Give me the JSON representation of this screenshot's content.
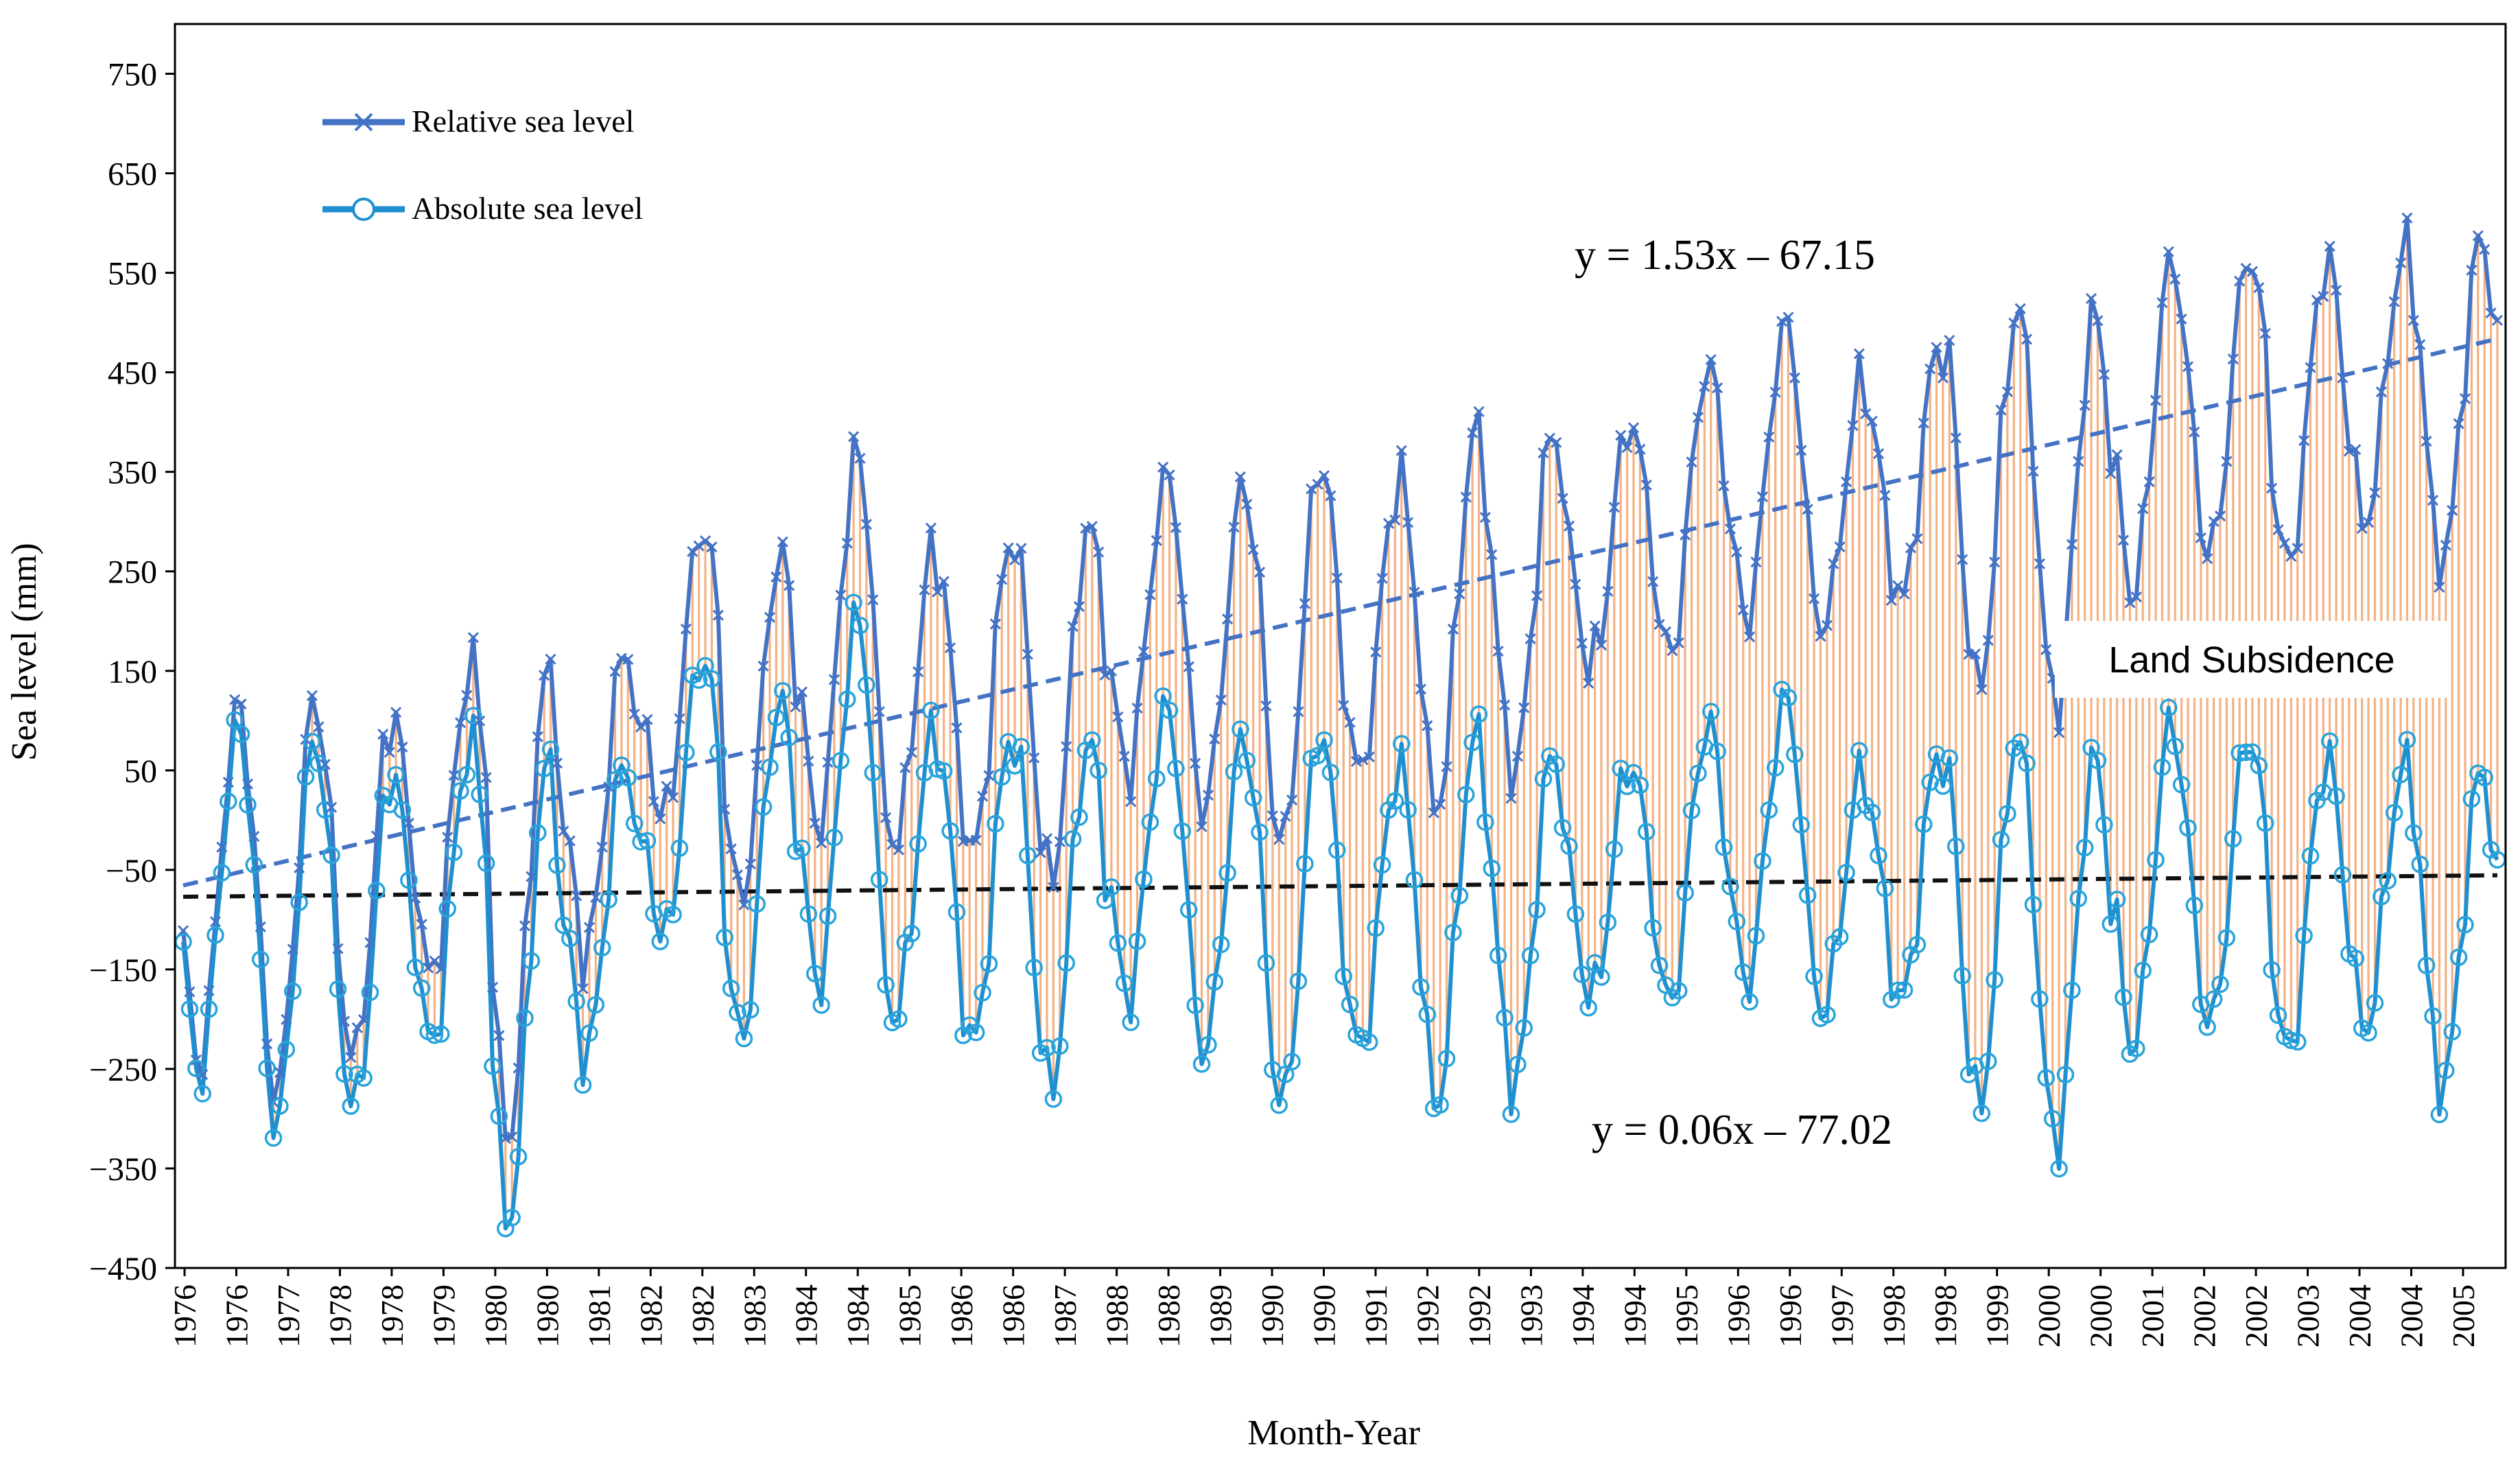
{
  "chart_data": {
    "type": "line",
    "xlabel": "Month-Year",
    "ylabel": "Sea level (mm)",
    "ylim": [
      -450,
      800
    ],
    "yticks": [
      -450,
      -350,
      -250,
      -150,
      -50,
      50,
      150,
      250,
      350,
      450,
      550,
      650,
      750
    ],
    "x_tick_labels": [
      "1976",
      "1976",
      "1977",
      "1978",
      "1978",
      "1979",
      "1980",
      "1980",
      "1981",
      "1982",
      "1982",
      "1983",
      "1984",
      "1984",
      "1985",
      "1986",
      "1986",
      "1987",
      "1988",
      "1988",
      "1989",
      "1990",
      "1990",
      "1991",
      "1992",
      "1992",
      "1993",
      "1994",
      "1994",
      "1995",
      "1996",
      "1996",
      "1997",
      "1998",
      "1998",
      "1999",
      "2000",
      "2000",
      "2001",
      "2002",
      "2002",
      "2003",
      "2004",
      "2004",
      "2005"
    ],
    "months": 360,
    "start": "1976-01",
    "legend": {
      "position": "top-left",
      "entries": [
        {
          "label": "Relative sea level",
          "marker": "x",
          "color": "#4472C4"
        },
        {
          "label": "Absolute sea level",
          "marker": "o",
          "color": "#1F8FD0"
        }
      ]
    },
    "fill": {
      "color": "#F4B183",
      "between": [
        "Relative sea level",
        "Absolute sea level"
      ]
    },
    "annotations": {
      "relative_trend": "y = 1.53x – 67.15",
      "absolute_trend": "y = 0.06x – 77.02",
      "land_subsidence": "Land Subsidence"
    },
    "series": [
      {
        "name": "Relative sea level",
        "trend": {
          "slope": 1.53,
          "intercept": -67.15
        },
        "color": "#4472C4"
      },
      {
        "name": "Absolute sea level",
        "trend": {
          "slope": 0.06,
          "intercept": -77.02
        },
        "color": "#1F8FD0"
      }
    ],
    "annual_absolute_peaks": [
      100,
      95,
      65,
      90,
      75,
      70,
      180,
      135,
      215,
      100,
      100,
      95,
      120,
      95,
      110,
      65,
      100,
      80,
      70,
      110,
      130,
      55,
      80,
      100,
      75,
      110,
      100,
      75,
      65,
      60
    ],
    "annual_absolute_troughs": [
      -270,
      -320,
      -305,
      -240,
      -420,
      -250,
      -135,
      -235,
      -180,
      -210,
      -240,
      -285,
      -190,
      -245,
      -305,
      -245,
      -300,
      -280,
      -190,
      -200,
      -175,
      -200,
      -195,
      -305,
      -340,
      -240,
      -220,
      -250,
      -220,
      -280
    ]
  }
}
